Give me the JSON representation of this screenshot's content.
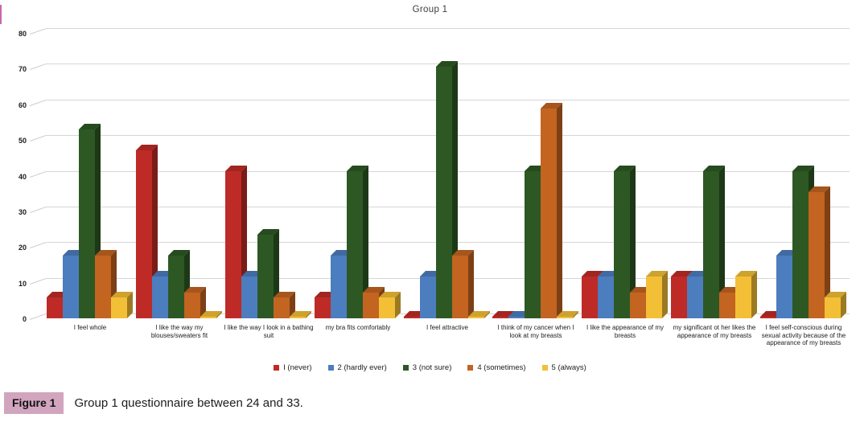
{
  "chart_data": {
    "type": "bar",
    "style": "3d-clustered-column",
    "title": "Group 1",
    "categories": [
      "I feel whole",
      "I like the way my blouses/sweaters fit",
      "I like the way I look in a bathing suit",
      "my bra fits comfortably",
      "I feel attractive",
      "I think of my cancer when I look at my breasts",
      "I like the appearance of my breasts",
      "my significant ot her likes the appearance of my breasts",
      "I feel self-conscious during sexual activity because of the appearance of my breasts"
    ],
    "series": [
      {
        "name": "I (never)",
        "color": "#be2b26",
        "values": [
          5.9,
          47.1,
          41.2,
          5.9,
          0.5,
          0.5,
          11.8,
          11.8,
          0.5
        ]
      },
      {
        "name": "2 (hardly ever)",
        "color": "#4c7dbe",
        "values": [
          17.6,
          11.8,
          11.8,
          17.6,
          11.8,
          0.5,
          11.8,
          11.8,
          17.6
        ]
      },
      {
        "name": "3 (not sure)",
        "color": "#2d5824",
        "values": [
          52.9,
          17.6,
          23.5,
          41.2,
          70.6,
          41.2,
          41.2,
          41.2,
          41.2
        ]
      },
      {
        "name": "4 (sometimes)",
        "color": "#c36421",
        "values": [
          17.6,
          7.1,
          5.9,
          7.1,
          17.6,
          58.8,
          7.1,
          7.1,
          35.3
        ]
      },
      {
        "name": "5 (always)",
        "color": "#f3bf36",
        "values": [
          5.9,
          0.5,
          0.5,
          5.9,
          0.5,
          0.5,
          11.8,
          11.8,
          5.9
        ]
      }
    ],
    "xlabel": "",
    "ylabel": "",
    "ylim": [
      0,
      80
    ],
    "yticks": [
      0,
      10,
      20,
      30,
      40,
      50,
      60,
      70,
      80
    ],
    "grid": true,
    "legend_position": "bottom"
  },
  "caption": {
    "label": "Figure 1",
    "text": "Group 1 questionnaire between 24 and 33.",
    "highlight_color": "#d2a5bf"
  }
}
